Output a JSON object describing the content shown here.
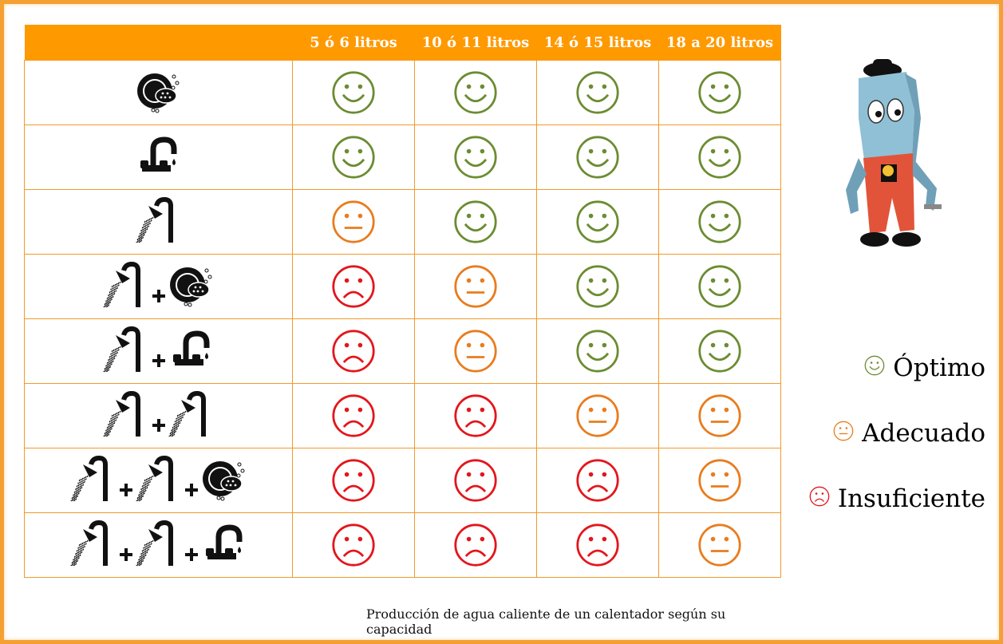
{
  "chart_data": {
    "type": "table",
    "columns": [
      "",
      "5 ó 6 litros",
      "10 ó 11 litros",
      "14 ó 15 litros",
      "18 a 20 litros"
    ],
    "rows": [
      {
        "activities": [
          "dishwashing"
        ],
        "ratings": [
          "optimo",
          "optimo",
          "optimo",
          "optimo"
        ]
      },
      {
        "activities": [
          "faucet"
        ],
        "ratings": [
          "optimo",
          "optimo",
          "optimo",
          "optimo"
        ]
      },
      {
        "activities": [
          "shower"
        ],
        "ratings": [
          "adecuado",
          "optimo",
          "optimo",
          "optimo"
        ]
      },
      {
        "activities": [
          "shower",
          "dishwashing"
        ],
        "ratings": [
          "insuficiente",
          "adecuado",
          "optimo",
          "optimo"
        ]
      },
      {
        "activities": [
          "shower",
          "faucet"
        ],
        "ratings": [
          "insuficiente",
          "adecuado",
          "optimo",
          "optimo"
        ]
      },
      {
        "activities": [
          "shower",
          "shower"
        ],
        "ratings": [
          "insuficiente",
          "insuficiente",
          "adecuado",
          "adecuado"
        ]
      },
      {
        "activities": [
          "shower",
          "shower",
          "dishwashing"
        ],
        "ratings": [
          "insuficiente",
          "insuficiente",
          "insuficiente",
          "adecuado"
        ]
      },
      {
        "activities": [
          "shower",
          "shower",
          "faucet"
        ],
        "ratings": [
          "insuficiente",
          "insuficiente",
          "insuficiente",
          "adecuado"
        ]
      }
    ],
    "rating_colors": {
      "optimo": "#6b8c32",
      "adecuado": "#e87c1e",
      "insuficiente": "#e3161b"
    },
    "icon_names": {
      "dishwashing": "dishwashing-icon",
      "faucet": "faucet-icon",
      "shower": "shower-icon",
      "plus": "plus-icon"
    },
    "legend": [
      {
        "key": "optimo",
        "label": "Óptimo"
      },
      {
        "key": "adecuado",
        "label": "Adecuado"
      },
      {
        "key": "insuficiente",
        "label": "Insuficiente"
      }
    ],
    "caption": "Producción de agua caliente de un calentador según su capacidad"
  },
  "colors": {
    "header_bg": "#ff9900",
    "border": "#f19a2a",
    "frame": "#f5a033"
  },
  "mascot": "water-heater-mascot-image"
}
